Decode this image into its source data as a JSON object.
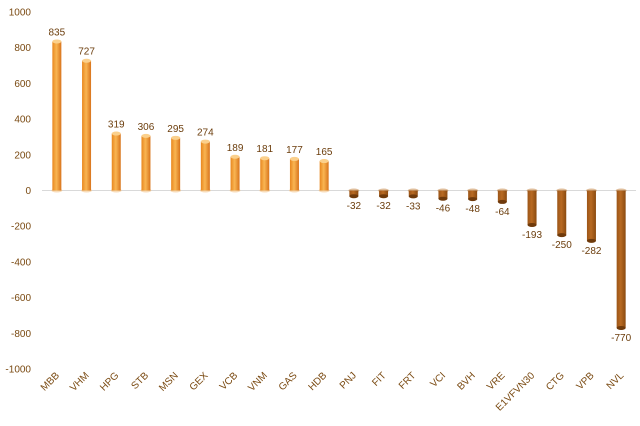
{
  "chart_data": {
    "type": "bar",
    "categories": [
      "MBB",
      "VHM",
      "HPG",
      "STB",
      "MSN",
      "GEX",
      "VCB",
      "VNM",
      "GAS",
      "HDB",
      "PNJ",
      "FIT",
      "FRT",
      "VCI",
      "BVH",
      "VRE",
      "E1VFVN30",
      "CTG",
      "VPB",
      "NVL"
    ],
    "values": [
      835,
      727,
      319,
      306,
      295,
      274,
      189,
      181,
      177,
      165,
      -32,
      -32,
      -33,
      -46,
      -48,
      -64,
      -193,
      -250,
      -282,
      -770
    ],
    "data_labels": [
      "835",
      "727",
      "319",
      "306",
      "295",
      "274",
      "189",
      "181",
      "177",
      "165",
      "-32",
      "-32",
      "-33",
      "-46",
      "-48",
      "-64",
      "-193",
      "-250",
      "-282",
      "-770"
    ],
    "ylim": [
      -1000,
      1000
    ],
    "yticks": [
      "1000",
      "800",
      "600",
      "400",
      "200",
      "0",
      "-200",
      "-400",
      "-600",
      "-800",
      "-1000"
    ],
    "ytick_values": [
      1000,
      800,
      600,
      400,
      200,
      0,
      -200,
      -400,
      -600,
      -800,
      -1000
    ],
    "grid": false,
    "legend": "none",
    "colors": {
      "positive_light": "#f7b04a",
      "positive_dark": "#d8741c",
      "negative_light": "#b86a22",
      "negative_dark": "#8a4a10",
      "axis": "#d9d9d9",
      "text": "#7a4a12"
    }
  }
}
